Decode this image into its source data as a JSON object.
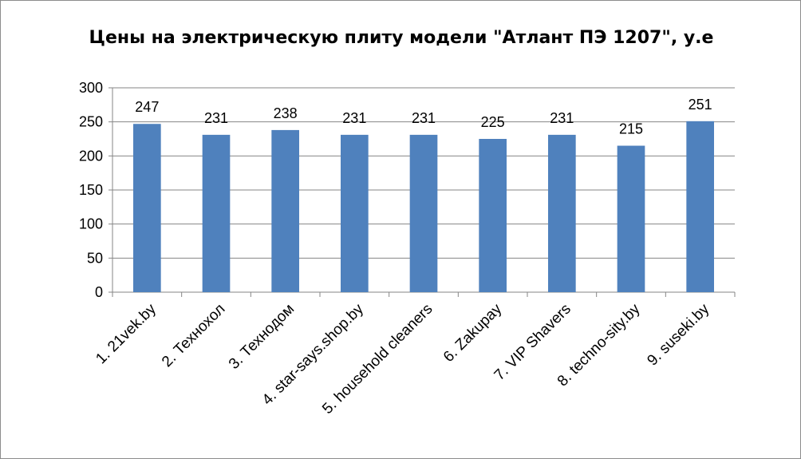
{
  "chart_data": {
    "type": "bar",
    "title": "Цены на электрическую плиту модели \"Атлант ПЭ 1207\", у.е",
    "categories": [
      "1. 21vek.by",
      "2. Технохол",
      "3. Технодом",
      "4. star-says.shop.by",
      "5. household cleaners",
      "6. Zakupay",
      "7. VIP Shavers",
      "8. techno-sity.by",
      "9. suseki.by"
    ],
    "values": [
      247,
      231,
      238,
      231,
      231,
      225,
      231,
      215,
      251
    ],
    "xlabel": "",
    "ylabel": "",
    "ylim": [
      0,
      300
    ],
    "yticks": [
      0,
      50,
      100,
      150,
      200,
      250,
      300
    ],
    "grid": true,
    "legend": "none",
    "bar_color": "#4f81bd",
    "grid_color": "#868686"
  }
}
